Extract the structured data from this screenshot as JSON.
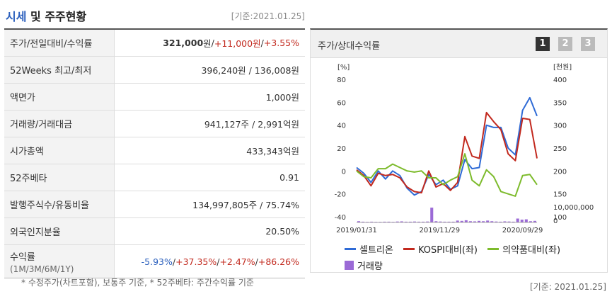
{
  "header": {
    "title_blue": "시세",
    "title_rest": " 및 주주현황",
    "date": "[기준:2021.01.25]"
  },
  "table": {
    "rows": [
      {
        "label": "주가/전일대비/수익률",
        "price": "321,000",
        "price_unit": "원",
        "sep1": " / ",
        "change": "+11,000원",
        "sep2": " / ",
        "rate": "+3.55%"
      },
      {
        "label": "52Weeks 최고/최저",
        "value": "396,240원 / 136,008원"
      },
      {
        "label": "액면가",
        "value": "1,000원"
      },
      {
        "label": "거래량/거래대금",
        "value": "941,127주 / 2,991억원"
      },
      {
        "label": "시가총액",
        "value": "433,343억원"
      },
      {
        "label": "52주베타",
        "value": "0.91"
      },
      {
        "label": "발행주식수/유동비율",
        "value": "134,997,805주 / 75.74%"
      },
      {
        "label": "외국인지분율",
        "value": "20.50%"
      },
      {
        "label": "수익률",
        "sublabel": "(1M/3M/6M/1Y)",
        "r1": "-5.93%",
        "r2": "+37.35%",
        "r3": "+2.47%",
        "r4": "+86.26%",
        "sep": "/"
      }
    ]
  },
  "note": "* 수정주가(차트포함), 보통주 기준, * 52주베타: 주간수익률 기준",
  "panel": {
    "title": "주가/상대수익률",
    "pages": [
      "1",
      "2",
      "3"
    ]
  },
  "footer_date": "[기준: 2021.01.25]",
  "chart_data": {
    "type": "line",
    "left_axis": {
      "label": "[%]",
      "ticks": [
        80,
        60,
        40,
        20,
        0,
        -20,
        -40
      ],
      "range": [
        -40,
        80
      ]
    },
    "right_axis": {
      "label": "[천원]",
      "ticks": [
        400,
        350,
        300,
        250,
        200,
        150,
        100
      ],
      "range": [
        100,
        400
      ]
    },
    "volume_axis": {
      "ticks": [
        "10,000,000",
        "0"
      ],
      "max": 10000000
    },
    "x_labels": [
      "2019/01/31",
      "2019/11/29",
      "2020/09/29"
    ],
    "x_label_positions": [
      0,
      10,
      20
    ],
    "series": [
      {
        "name": "셀트리온",
        "color": "#2f6bd6",
        "values": [
          3,
          -2,
          -10,
          0,
          -7,
          0,
          -4,
          -15,
          -21,
          -18,
          -3,
          -12,
          -8,
          -16,
          -13,
          10,
          2,
          3,
          40,
          38,
          38,
          20,
          14,
          53,
          64,
          48
        ]
      },
      {
        "name": "KOSPI대비(좌)",
        "color": "#c2291e",
        "values": [
          1,
          -4,
          -13,
          -2,
          -4,
          -3,
          -6,
          -14,
          -18,
          -19,
          0,
          -14,
          -11,
          -17,
          -10,
          30,
          13,
          11,
          51,
          43,
          36,
          15,
          9,
          46,
          45,
          11
        ]
      },
      {
        "name": "의약품대비(좌)",
        "color": "#7dbb2c",
        "values": [
          0,
          -5,
          -6,
          2,
          2,
          6,
          3,
          0,
          -1,
          0,
          -6,
          -6,
          -12,
          -8,
          -5,
          15,
          -8,
          -13,
          1,
          -5,
          -18,
          -20,
          -22,
          -4,
          -3,
          -12
        ]
      }
    ],
    "volume": {
      "name": "거래량",
      "color": "#9b6ad6",
      "values": [
        0.08,
        0.05,
        0.04,
        0.05,
        0.04,
        0.04,
        0.05,
        0.05,
        0.04,
        0.06,
        0.07,
        0.05,
        0.05,
        0.06,
        0.05,
        0.05,
        0.06,
        0.95,
        0.08,
        0.06,
        0.05,
        0.05,
        0.05,
        0.12,
        0.1,
        0.14,
        0.08,
        0.07,
        0.1,
        0.08,
        0.12,
        0.08,
        0.06,
        0.05,
        0.07,
        0.06,
        0.05,
        0.25,
        0.18,
        0.2,
        0.08,
        0.1
      ]
    }
  }
}
